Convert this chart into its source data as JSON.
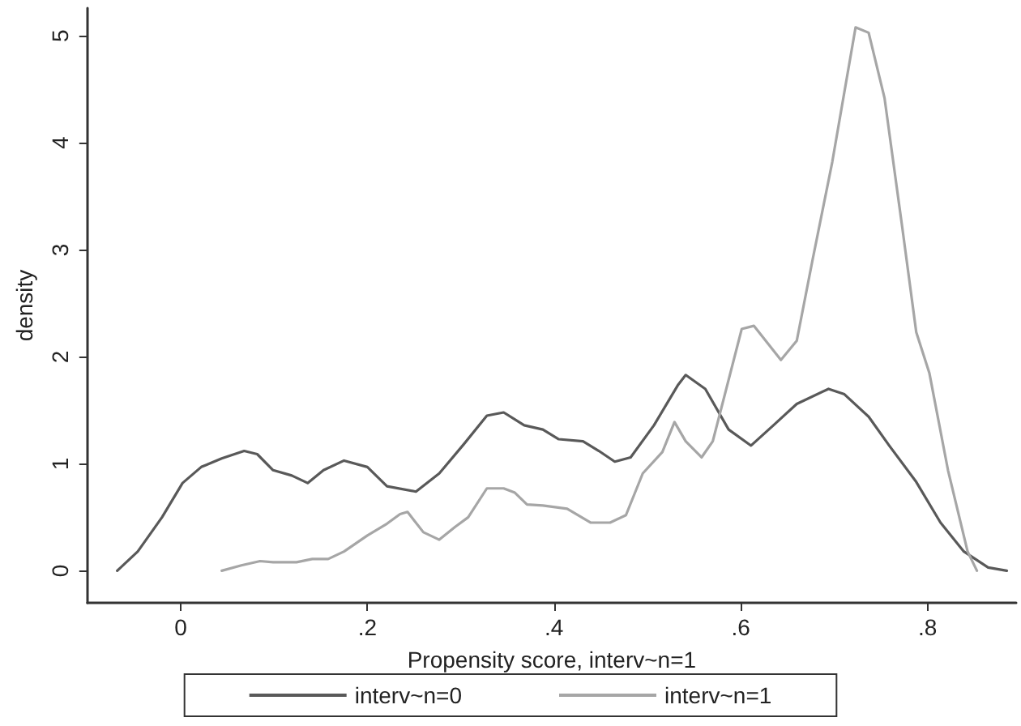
{
  "chart_data": {
    "type": "line",
    "xlabel": "Propensity score, interv~n=1",
    "ylabel": "density",
    "xlim": [
      -0.1,
      0.895
    ],
    "ylim": [
      -0.3,
      5.26
    ],
    "xticks": [
      0,
      {
        "value": 0.2,
        "label": ".2"
      },
      {
        "value": 0.4,
        "label": ".4"
      },
      {
        "value": 0.6,
        "label": ".6"
      },
      {
        "value": 0.8,
        "label": ".8"
      }
    ],
    "yticks": [
      0,
      1,
      2,
      3,
      4,
      5
    ],
    "grid": false,
    "legend": "bottom",
    "marker": "none",
    "line_style": "solid",
    "series": [
      {
        "name": "interv~n=0",
        "color": "#595959",
        "x": [
          -0.068,
          -0.046,
          -0.02,
          0.002,
          0.022,
          0.044,
          0.068,
          0.082,
          0.099,
          0.119,
          0.136,
          0.153,
          0.175,
          0.2,
          0.221,
          0.252,
          0.277,
          0.303,
          0.328,
          0.346,
          0.368,
          0.388,
          0.405,
          0.431,
          0.448,
          0.465,
          0.482,
          0.507,
          0.533,
          0.541,
          0.562,
          0.587,
          0.611,
          0.635,
          0.66,
          0.694,
          0.711,
          0.737,
          0.759,
          0.788,
          0.814,
          0.839,
          0.865,
          0.885
        ],
        "values": [
          0,
          0.18,
          0.5,
          0.82,
          0.97,
          1.05,
          1.12,
          1.09,
          0.94,
          0.89,
          0.82,
          0.94,
          1.03,
          0.97,
          0.79,
          0.74,
          0.91,
          1.18,
          1.45,
          1.48,
          1.36,
          1.32,
          1.23,
          1.21,
          1.12,
          1.02,
          1.06,
          1.36,
          1.74,
          1.83,
          1.7,
          1.32,
          1.17,
          1.36,
          1.56,
          1.7,
          1.65,
          1.44,
          1.17,
          0.83,
          0.45,
          0.18,
          0.03,
          0
        ]
      },
      {
        "name": "interv~n=1",
        "color": "#a6a6a6",
        "x": [
          0.044,
          0.065,
          0.085,
          0.099,
          0.124,
          0.141,
          0.158,
          0.175,
          0.2,
          0.221,
          0.235,
          0.243,
          0.26,
          0.277,
          0.294,
          0.308,
          0.328,
          0.346,
          0.358,
          0.371,
          0.388,
          0.414,
          0.439,
          0.46,
          0.477,
          0.495,
          0.516,
          0.529,
          0.541,
          0.558,
          0.57,
          0.601,
          0.614,
          0.643,
          0.66,
          0.677,
          0.698,
          0.723,
          0.737,
          0.754,
          0.773,
          0.788,
          0.802,
          0.822,
          0.843,
          0.853
        ],
        "values": [
          0,
          0.05,
          0.09,
          0.08,
          0.08,
          0.11,
          0.11,
          0.18,
          0.33,
          0.44,
          0.53,
          0.55,
          0.36,
          0.29,
          0.41,
          0.5,
          0.77,
          0.77,
          0.73,
          0.62,
          0.61,
          0.58,
          0.45,
          0.45,
          0.52,
          0.91,
          1.11,
          1.39,
          1.21,
          1.06,
          1.21,
          2.26,
          2.29,
          1.97,
          2.15,
          2.91,
          3.82,
          5.08,
          5.03,
          4.42,
          3.21,
          2.23,
          1.85,
          0.94,
          0.18,
          0
        ]
      }
    ]
  }
}
